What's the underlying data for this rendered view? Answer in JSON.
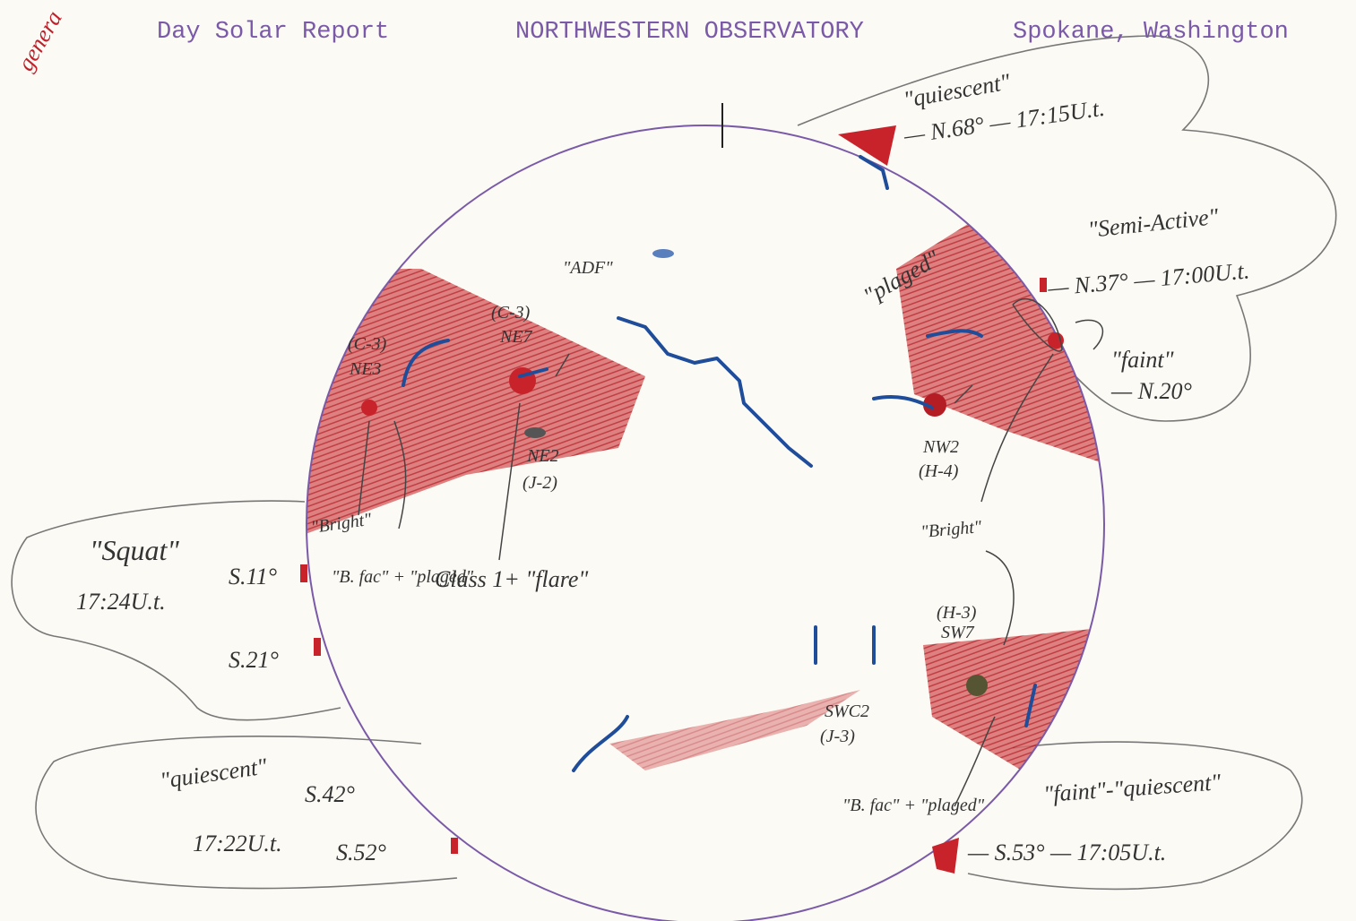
{
  "header": {
    "left": "Day Solar Report",
    "center": "NORTHWESTERN OBSERVATORY",
    "right": "Spokane, Washington"
  },
  "corner_note": "genera",
  "prominences": {
    "ne": {
      "type": "\"quiescent\"",
      "line": "— N.68° — 17:15U.t."
    },
    "e1": {
      "type": "\"Semi-Active\"",
      "line": "— N.37° — 17:00U.t."
    },
    "e2": {
      "type": "\"faint\"",
      "line": "— N.20°"
    },
    "se": {
      "type": "\"faint\"-\"quiescent\"",
      "line": "— S.53° — 17:05U.t."
    },
    "w1": {
      "type": "\"Squat\"",
      "time": "17:24U.t.",
      "lat1": "S.11°",
      "lat2": "S.21°"
    },
    "sw": {
      "type": "\"quiescent\"",
      "time": "17:22U.t.",
      "lat1": "S.42°",
      "lat2": "S.52°"
    }
  },
  "regions": {
    "plaged": "\"plaged\"",
    "adf": "\"ADF\"",
    "ne7_class": "(C-3)",
    "ne7": "NE7",
    "ne3_class": "(C-3)",
    "ne3": "NE3",
    "ne2": "NE2",
    "ne2_class": "(J-2)",
    "nw2": "NW2",
    "nw2_class": "(H-4)",
    "bright_left": "\"Bright\"",
    "bfac_left": "\"B. fac\" + \"plaged\"",
    "flare": "Class 1+ \"flare\"",
    "bright_right": "\"Bright\"",
    "sw7_class": "(H-3)",
    "sw7": "SW7",
    "swc2": "SWC2",
    "swc2_class": "(J-3)",
    "bfac_right": "\"B. fac\" + \"plaged\""
  }
}
